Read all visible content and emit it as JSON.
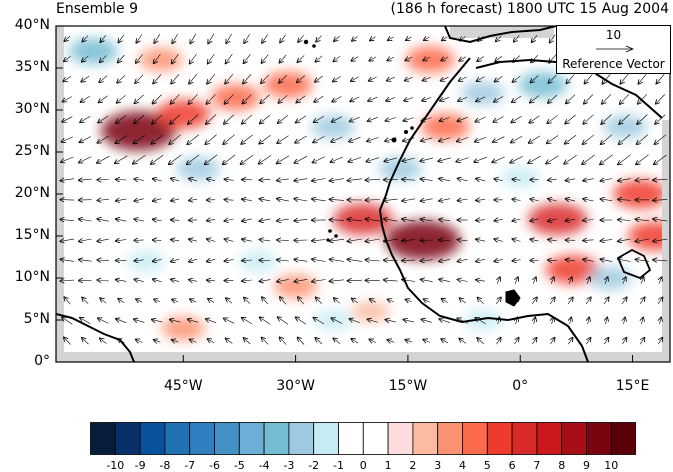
{
  "header": {
    "left_title": "Ensemble 9",
    "right_title": "(186 h forecast) 1800 UTC 15 Aug 2004"
  },
  "axes": {
    "lat_labels": [
      "40°N",
      "35°N",
      "30°N",
      "25°N",
      "20°N",
      "15°N",
      "10°N",
      "5°N",
      "0°"
    ],
    "lat_values": [
      40,
      35,
      30,
      25,
      20,
      15,
      10,
      5,
      0
    ],
    "lon_labels": [
      "45°W",
      "30°W",
      "15°W",
      "0°",
      "15°E"
    ],
    "lon_values": [
      -45,
      -30,
      -15,
      0,
      15
    ],
    "lon_range": [
      -62,
      20
    ],
    "lat_range": [
      0,
      40
    ]
  },
  "reference_vector": {
    "magnitude": "10",
    "label": "Reference Vector"
  },
  "colorbar": {
    "labels": [
      "-10",
      "-9",
      "-8",
      "-7",
      "-6",
      "-5",
      "-4",
      "-3",
      "-2",
      "-1",
      "0",
      "1",
      "2",
      "3",
      "4",
      "5",
      "6",
      "7",
      "8",
      "9",
      "10"
    ],
    "colors": [
      "#071d3a",
      "#08306b",
      "#08519c",
      "#2171b5",
      "#2f7fc1",
      "#4292c6",
      "#6baed6",
      "#74bcd1",
      "#9ecae1",
      "#c6ebf5",
      "#ffffff",
      "#ffffff",
      "#fcdcdc",
      "#fcbba1",
      "#fc9272",
      "#fb6a4a",
      "#ef3b2c",
      "#d92a2a",
      "#cb181d",
      "#a50f15",
      "#7a0410",
      "#5a0008"
    ]
  },
  "anomalies": [
    {
      "lon": -51,
      "lat": 27.5,
      "value": 9
    },
    {
      "lon": -45,
      "lat": 29.5,
      "value": 5
    },
    {
      "lon": -38,
      "lat": 31.5,
      "value": 4
    },
    {
      "lon": -31,
      "lat": 33,
      "value": 4
    },
    {
      "lon": -21,
      "lat": 17,
      "value": 6
    },
    {
      "lon": -13,
      "lat": 14.5,
      "value": 9
    },
    {
      "lon": -10,
      "lat": 28,
      "value": 4
    },
    {
      "lon": -12,
      "lat": 36,
      "value": 4
    },
    {
      "lon": 5,
      "lat": 17,
      "value": 6
    },
    {
      "lon": 16,
      "lat": 20,
      "value": 5
    },
    {
      "lon": 18,
      "lat": 15,
      "value": 5
    },
    {
      "lon": 7,
      "lat": 11,
      "value": 5
    },
    {
      "lon": -57,
      "lat": 37,
      "value": -4
    },
    {
      "lon": -43,
      "lat": 23,
      "value": -3
    },
    {
      "lon": -25,
      "lat": 28,
      "value": -3
    },
    {
      "lon": -16,
      "lat": 23,
      "value": -3
    },
    {
      "lon": -5,
      "lat": 32,
      "value": -3
    },
    {
      "lon": 3,
      "lat": 33,
      "value": -4
    },
    {
      "lon": 12,
      "lat": 10,
      "value": -3
    },
    {
      "lon": 14,
      "lat": 28,
      "value": -3
    },
    {
      "lon": -35,
      "lat": 12,
      "value": -2
    },
    {
      "lon": -25,
      "lat": 5,
      "value": -2
    },
    {
      "lon": -50,
      "lat": 12,
      "value": -2
    },
    {
      "lon": 0,
      "lat": 22,
      "value": -2
    },
    {
      "lon": -45,
      "lat": 4,
      "value": 3
    },
    {
      "lon": -30,
      "lat": 9,
      "value": 3
    },
    {
      "lon": -20,
      "lat": 6,
      "value": 2
    },
    {
      "lon": -48,
      "lat": 36,
      "value": 3
    },
    {
      "lon": -5,
      "lat": 5,
      "value": -2
    }
  ]
}
